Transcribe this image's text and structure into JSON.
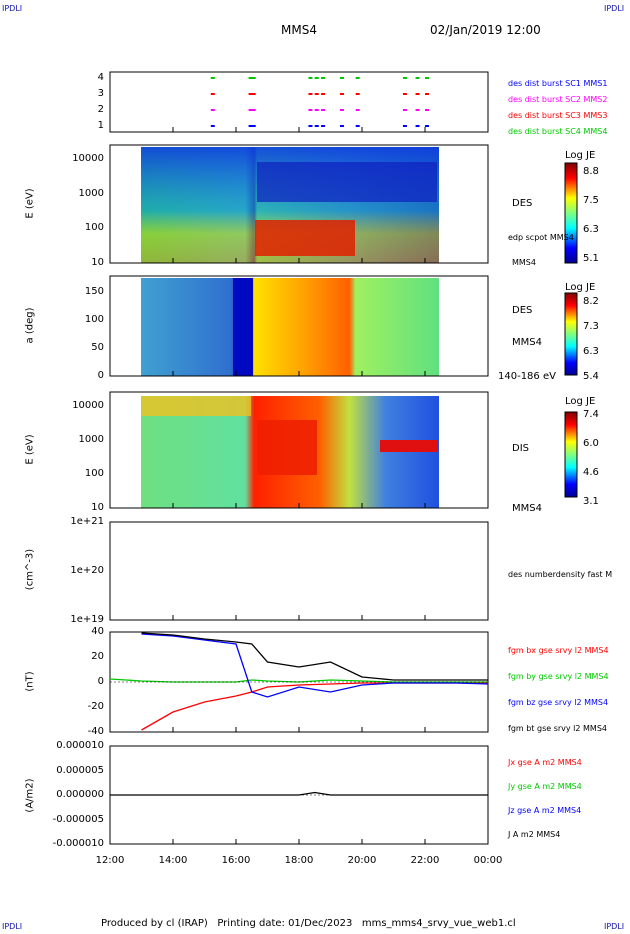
{
  "header": {
    "corner_left": "IPDLI",
    "corner_right": "IPDLI",
    "corner_bottom_left": "IPDLI",
    "corner_bottom_right": "IPDLI",
    "spacecraft": "MMS4",
    "datetime": "02/Jan/2019 12:00"
  },
  "footer": {
    "text": "Produced by cl (IRAP)   Printing date: 01/Dec/2023   mms_mms4_srvy_vue_web1.cl"
  },
  "colors": {
    "red": "#ff0000",
    "green": "#00c800",
    "blue": "#0000ff",
    "magenta": "#ff00ff",
    "black": "#000000"
  },
  "chart_data": [
    {
      "type": "scatter",
      "panel": "burst",
      "yticks": [
        "4",
        "3",
        "2",
        "1"
      ],
      "legend": [
        {
          "label": "des dist burst SC1 MMS1",
          "color": "#0000ff"
        },
        {
          "label": "des dist burst SC2 MMS2",
          "color": "#ff00ff"
        },
        {
          "label": "des dist burst SC3 MMS3",
          "color": "#ff0000"
        },
        {
          "label": "des dist burst SC4 MMS4",
          "color": "#00c800"
        }
      ],
      "x_hours": [
        15.2,
        16.4,
        16.5,
        18.3,
        18.5,
        18.7,
        19.3,
        19.8,
        21.3,
        21.7,
        22.0
      ]
    },
    {
      "type": "heatmap",
      "panel": "des-energy",
      "ylabel": "E (eV)",
      "yscale": "log",
      "yticks": [
        "10000",
        "1000",
        "100",
        "10"
      ],
      "right_labels": [
        "DES",
        "edp scpot MMS4",
        "MMS4"
      ],
      "colorbar": {
        "title": "Log JE",
        "ticks": [
          "8.8",
          "7.5",
          "6.3",
          "5.1"
        ]
      }
    },
    {
      "type": "heatmap",
      "panel": "des-pitch",
      "ylabel": "a (deg)",
      "yticks": [
        "150",
        "100",
        "50",
        "0"
      ],
      "right_labels": [
        "DES",
        "MMS4",
        "140-186 eV"
      ],
      "colorbar": {
        "title": "Log JE",
        "ticks": [
          "8.2",
          "7.3",
          "6.3",
          "5.4"
        ]
      }
    },
    {
      "type": "heatmap",
      "panel": "dis-energy",
      "ylabel": "E (eV)",
      "yscale": "log",
      "yticks": [
        "10000",
        "1000",
        "100",
        "10"
      ],
      "right_labels": [
        "DIS",
        "MMS4"
      ],
      "colorbar": {
        "title": "Log JE",
        "ticks": [
          "7.4",
          "6.0",
          "4.6",
          "3.1"
        ]
      }
    },
    {
      "type": "line",
      "panel": "density",
      "ylabel": "(cm^-3)",
      "yscale": "log",
      "yticks": [
        "1e+21",
        "1e+20",
        "1e+19"
      ],
      "legend": [
        {
          "label": "des numberdensity fast M",
          "color": "#000000"
        }
      ],
      "series": []
    },
    {
      "type": "line",
      "panel": "magnetic-field",
      "ylabel": "(nT)",
      "ylim": [
        -50,
        50
      ],
      "yticks": [
        "40",
        "20",
        "0",
        "-20",
        "-40"
      ],
      "legend": [
        {
          "label": "fgm bx gse srvy l2 MMS4",
          "color": "#ff0000"
        },
        {
          "label": "fgm by gse srvy l2 MMS4",
          "color": "#00c800"
        },
        {
          "label": "fgm bz gse srvy l2 MMS4",
          "color": "#0000ff"
        },
        {
          "label": "fgm bt gse srvy l2 MMS4",
          "color": "#000000"
        }
      ],
      "series": [
        {
          "name": "fgm bx gse srvy l2 MMS4",
          "x": [
            12.0,
            13.0,
            14.0,
            15.0,
            16.0,
            16.5,
            17.0,
            18.0,
            19.0,
            20.0,
            21.0,
            22.0,
            23.0,
            24.0
          ],
          "y": [
            null,
            -48,
            -30,
            -20,
            -14,
            -10,
            -5,
            -3,
            -2,
            -1,
            -1,
            -1,
            -1,
            -1
          ]
        },
        {
          "name": "fgm by gse srvy l2 MMS4",
          "x": [
            12.0,
            13.0,
            14.0,
            15.0,
            16.0,
            16.5,
            17.0,
            18.0,
            19.0,
            20.0,
            21.0,
            22.0,
            23.0,
            24.0
          ],
          "y": [
            3,
            1,
            0,
            0,
            0,
            2,
            1,
            0,
            2,
            1,
            0,
            0,
            0,
            0
          ]
        },
        {
          "name": "fgm bz gse srvy l2 MMS4",
          "x": [
            12.0,
            13.0,
            14.0,
            15.0,
            16.0,
            16.5,
            17.0,
            18.0,
            19.0,
            20.0,
            21.0,
            22.0,
            23.0,
            24.0
          ],
          "y": [
            null,
            48,
            46,
            42,
            38,
            -10,
            -15,
            -5,
            -10,
            -3,
            -1,
            -1,
            -1,
            -2
          ]
        },
        {
          "name": "fgm bt gse srvy l2 MMS4",
          "x": [
            12.0,
            13.0,
            14.0,
            15.0,
            16.0,
            16.5,
            17.0,
            18.0,
            19.0,
            20.0,
            21.0,
            22.0,
            23.0,
            24.0
          ],
          "y": [
            null,
            49,
            47,
            43,
            40,
            38,
            20,
            15,
            20,
            5,
            2,
            2,
            2,
            2
          ]
        }
      ]
    },
    {
      "type": "line",
      "panel": "current-density",
      "ylabel": "(A/m2)",
      "ylim": [
        -1e-05,
        1e-05
      ],
      "yticks": [
        "0.000010",
        "0.000005",
        "0.000000",
        "-0.000005",
        "-0.000010"
      ],
      "legend": [
        {
          "label": "Jx gse A m2 MMS4",
          "color": "#ff0000"
        },
        {
          "label": "Jy gse A m2 MMS4",
          "color": "#00c800"
        },
        {
          "label": "Jz gse A m2 MMS4",
          "color": "#0000ff"
        },
        {
          "label": "J A m2 MMS4",
          "color": "#000000"
        }
      ],
      "series": [
        {
          "name": "J A m2 MMS4",
          "x": [
            12.0,
            16.0,
            18.0,
            18.5,
            19.0,
            20.0,
            24.0
          ],
          "y": [
            0,
            0,
            0,
            5e-07,
            0,
            0,
            0
          ]
        }
      ]
    }
  ],
  "x_axis": {
    "xlim": [
      12,
      24
    ],
    "ticks": [
      "12:00",
      "14:00",
      "16:00",
      "18:00",
      "20:00",
      "22:00",
      "00:00"
    ]
  }
}
